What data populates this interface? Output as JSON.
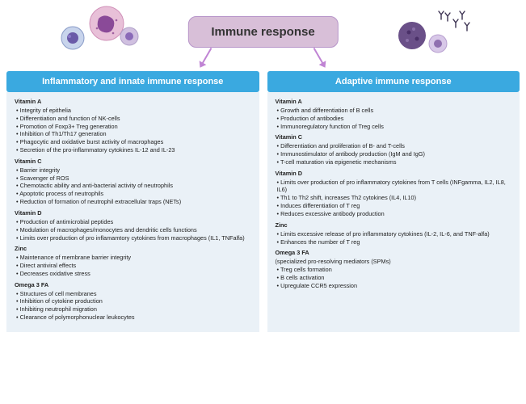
{
  "title": "Immune response",
  "colors": {
    "title_bg": "#d8bfd8",
    "title_border": "#b794c9",
    "header_bg": "#3aa9e0",
    "header_text": "#ffffff",
    "body_bg": "#eaf1f7",
    "arrow": "#c084d4",
    "cell_purple": "#8a5fb5",
    "cell_violet": "#7a4ea8",
    "cell_lavender": "#b8a0d0",
    "cell_pink": "#c98cb8"
  },
  "left": {
    "header": "Inflammatory and innate immune response",
    "sections": [
      {
        "title": "Vitamin A",
        "items": [
          "Integrity of epithelia",
          "Differentiation and function of NK-cells",
          "Promotion of Foxp3+ Treg generation",
          "Inhibition of Th1/Th17 generation",
          "Phagocytic and oxidative burst activity of macrophages",
          "Secretion of the pro-inflammatory cytokines IL-12 and IL-23"
        ]
      },
      {
        "title": "Vitamin C",
        "items": [
          "Barrier integrity",
          "Scavenger of ROS",
          "Chemotactic ability and anti-bacterial activity of neutrophils",
          "Apoptotic process of neutrophils",
          "Reduction of formation of neutrophil extracellular traps (NETs)"
        ]
      },
      {
        "title": "Vitamin D",
        "items": [
          "Production of antimicrobial peptides",
          "Modulation of macrophages/monocytes and dendritic cells functions",
          "Limits over production of pro inflamamtory cytokines from macrophages (IL1, TNFalfa)"
        ]
      },
      {
        "title": "Zinc",
        "items": [
          "Maintenance of membrane barrier integrity",
          "Direct antiviral effects",
          "Decreases oxidative stress"
        ]
      },
      {
        "title": "Omega 3 FA",
        "items": [
          "Structures of cell membranes",
          "Inhibition of cytokine production",
          "Inhibiting neutrophil migration",
          "Clearance of polymorphonuclear leukocytes"
        ]
      }
    ]
  },
  "right": {
    "header": "Adaptive immune response",
    "sections": [
      {
        "title": "Vitamin A",
        "items": [
          "Growth and differentiation of B cells",
          "Production of antibodies",
          "Immunoregulatory function of Treg cells"
        ]
      },
      {
        "title": "Vitamin C",
        "items": [
          "Differentiation and proliferation of B- and T-cells",
          "Immunostimulator of antibody production (IgM and IgG)",
          "T-cell maturation via epigenetic mechanisms"
        ]
      },
      {
        "title": "Vitamin D",
        "items": [
          "Limits over production of pro inflammatory cytokines from T cells  (INFgamma, IL2, IL8, IL6)",
          "Th1 to Th2 shift, increases Th2 cytokines (IL4, IL10)",
          "Induces differentiation of T reg",
          "Reduces excessive antibody production"
        ]
      },
      {
        "title": "Zinc",
        "items": [
          "Limits excessive release of pro inflammatory cytokines (IL-2, IL-6, and TNF-alfa)",
          "Enhances the number of T reg"
        ]
      },
      {
        "title": "Omega 3 FA",
        "subtitle": "(specialized pro-resolving mediators (SPMs)",
        "items": [
          "Treg cells formation",
          "B cells activation",
          "Upregulate CCR5 expression"
        ]
      }
    ]
  }
}
